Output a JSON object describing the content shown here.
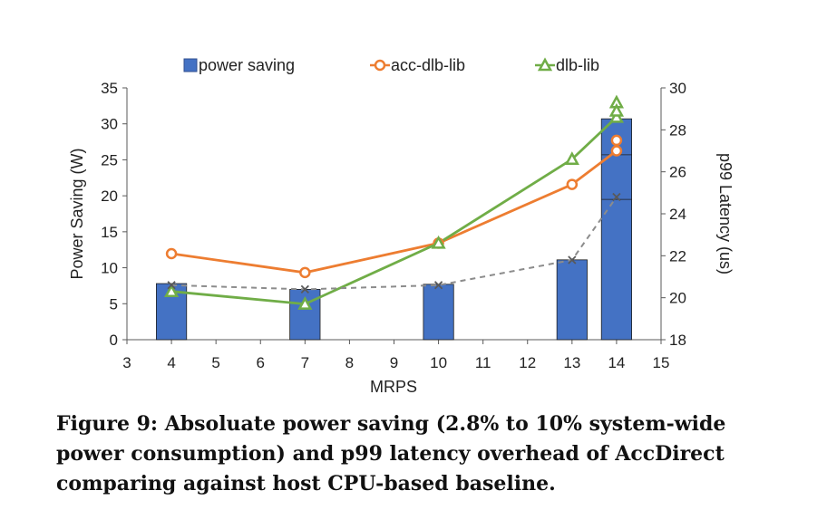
{
  "caption": "Figure 9: Absoluate power saving (2.8% to 10% system-wide power consumption) and p99 latency overhead of AccDirect comparing against host CPU-based baseline.",
  "chart_data": {
    "type": "bar",
    "xlabel": "MRPS",
    "ylabel": "Power Saving (W)",
    "y2label": "p99 Latency (us)",
    "xlim": [
      3,
      15
    ],
    "xticks": [
      3,
      4,
      5,
      6,
      7,
      8,
      9,
      10,
      11,
      12,
      13,
      14,
      15
    ],
    "ylim": [
      0,
      35
    ],
    "yticks": [
      0,
      5,
      10,
      15,
      20,
      25,
      30,
      35
    ],
    "y2lim": [
      18,
      30
    ],
    "y2ticks": [
      18,
      20,
      22,
      24,
      26,
      28,
      30
    ],
    "grid": false,
    "legend_position": "top",
    "legend": [
      "power saving",
      "acc-dlb-lib",
      "dlb-lib"
    ],
    "bars": {
      "name": "power saving",
      "color": "#4472c4",
      "x": [
        4,
        7,
        10,
        13,
        14
      ],
      "values": [
        7.8,
        7.0,
        7.7,
        11.1,
        30.7
      ],
      "segments_at_14": [
        19.5,
        25.7,
        30.7
      ]
    },
    "series": [
      {
        "name": "acc-dlb-lib",
        "axis": "right",
        "color": "#ed7d31",
        "marker": "circle",
        "x": [
          4,
          7,
          10,
          13,
          14
        ],
        "values": [
          22.1,
          21.2,
          22.6,
          25.4,
          27.0
        ],
        "extra_point": {
          "x": 14,
          "value": 27.5
        }
      },
      {
        "name": "dlb-lib",
        "axis": "right",
        "color": "#70ad47",
        "marker": "triangle",
        "x": [
          4,
          7,
          10,
          13,
          14
        ],
        "values": [
          20.3,
          19.7,
          22.6,
          26.6,
          28.6
        ],
        "extra_points": [
          {
            "x": 14,
            "value": 29.3
          },
          {
            "x": 14,
            "value": 28.9
          }
        ]
      },
      {
        "name": "",
        "axis": "right",
        "color": "#8c8c8c",
        "marker": "cross",
        "dashed": true,
        "x": [
          4,
          7,
          10,
          13,
          14
        ],
        "values": [
          20.6,
          20.4,
          20.6,
          21.8,
          24.8
        ]
      }
    ]
  }
}
